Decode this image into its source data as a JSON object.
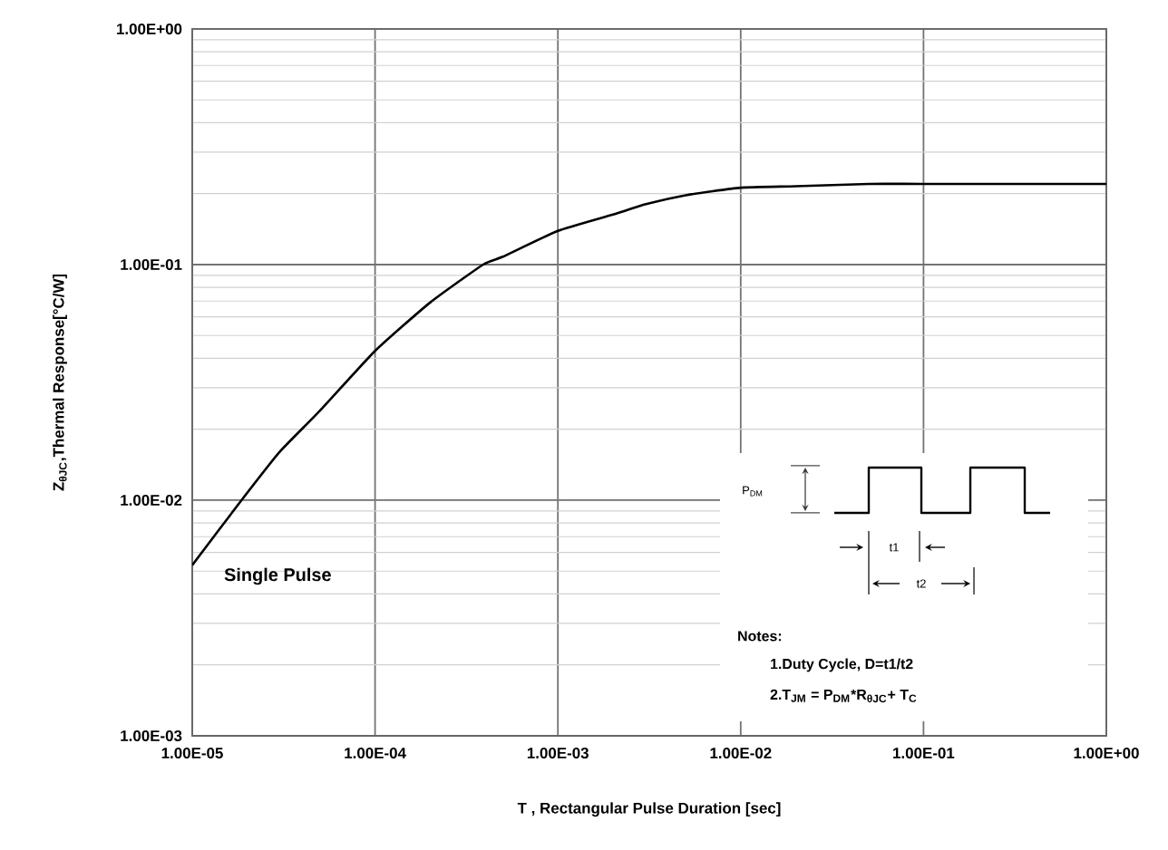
{
  "chart_data": {
    "type": "line",
    "xlabel": "T , Rectangular Pulse Duration [sec]",
    "ylabel": "Z$_{θJC}$,Thermal Response[°C/W]",
    "log": "xy",
    "grid": true,
    "marker": "none",
    "line_style": "solid",
    "xlim": [
      1e-05,
      1
    ],
    "ylim": [
      0.001,
      1
    ],
    "xticks": [
      {
        "value": 1e-05,
        "label": "1.00E-05"
      },
      {
        "value": 0.0001,
        "label": "1.00E-04"
      },
      {
        "value": 0.001,
        "label": "1.00E-03"
      },
      {
        "value": 0.01,
        "label": "1.00E-02"
      },
      {
        "value": 0.1,
        "label": "1.00E-01"
      },
      {
        "value": 1,
        "label": "1.00E+00"
      }
    ],
    "yticks": [
      {
        "value": 0.001,
        "label": "1.00E-03"
      },
      {
        "value": 0.01,
        "label": "1.00E-02"
      },
      {
        "value": 0.1,
        "label": "1.00E-01"
      },
      {
        "value": 1,
        "label": "1.00E+00"
      }
    ],
    "x": [
      1e-05,
      1.86e-05,
      3e-05,
      5e-05,
      0.0001,
      0.0002,
      0.00039,
      0.0005,
      0.001,
      0.002,
      0.003,
      0.005,
      0.01,
      0.02,
      0.05,
      0.1,
      1
    ],
    "series": [
      {
        "color": "#000000",
        "values": [
          0.0053,
          0.01,
          0.016,
          0.024,
          0.043,
          0.069,
          0.1,
          0.108,
          0.139,
          0.163,
          0.18,
          0.197,
          0.212,
          0.215,
          0.22,
          0.22,
          0.22
        ]
      }
    ],
    "annotations": [
      "Single Pulse",
      "P$_{DM}$",
      "t1",
      "t2",
      "Notes:",
      "1.Duty  Cycle, D=t1/t2",
      "2.T$_{JM}$ = P$_{DM}$*R$_{θJC}$+ T$_{C}$"
    ]
  }
}
